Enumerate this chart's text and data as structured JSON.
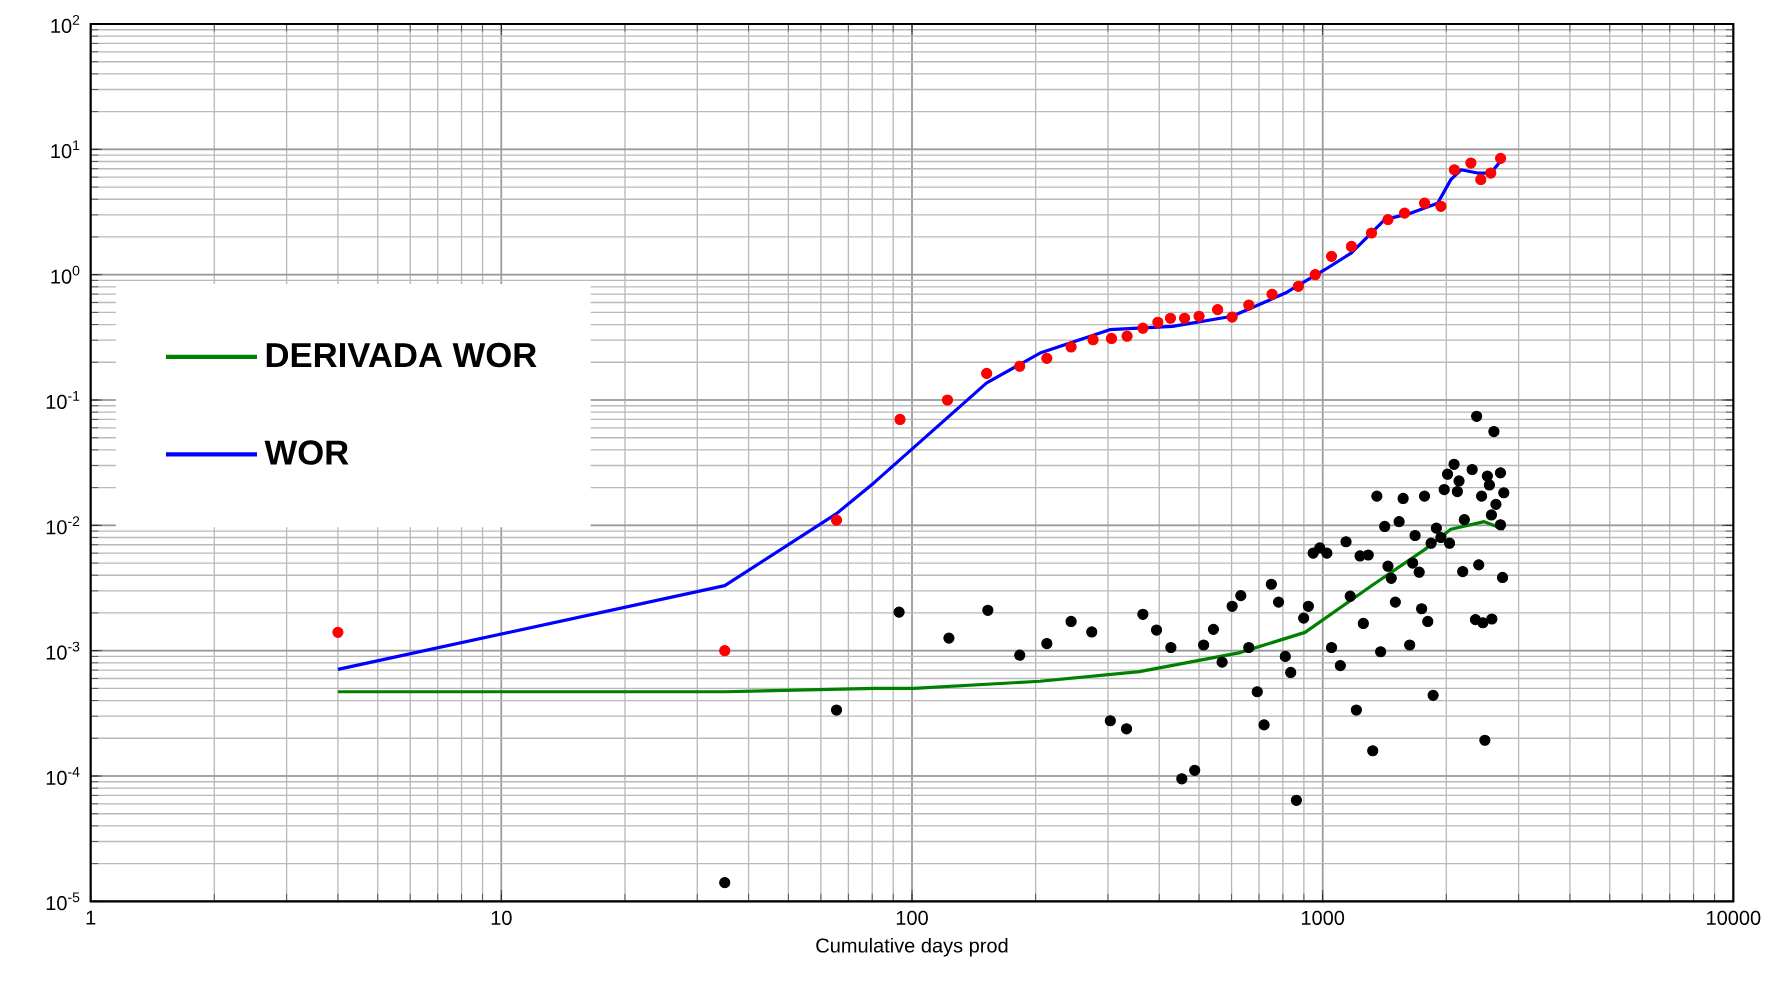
{
  "chart_data": {
    "type": "line",
    "xlabel": "Cumulative days prod",
    "log": "xy",
    "grid": true,
    "legend": "left",
    "xlim": [
      1,
      10000
    ],
    "ylim": [
      1e-05,
      100
    ],
    "xticks": [
      1,
      10,
      100,
      1000,
      10000
    ],
    "yticks": [
      {
        "value": 1e-05,
        "label": "10$^{-5}$"
      },
      {
        "value": 0.0001,
        "label": "10$^{-4}$"
      },
      {
        "value": 0.001,
        "label": "10$^{-3}$"
      },
      {
        "value": 0.01,
        "label": "10$^{-2}$"
      },
      {
        "value": 0.1,
        "label": "10$^{-1}$"
      },
      {
        "value": 1,
        "label": "10$^{0}$"
      },
      {
        "value": 10,
        "label": "10$^{1}$"
      },
      {
        "value": 100,
        "label": "10$^{2}$"
      }
    ],
    "series": [
      {
        "name": "DERIVADA WOR",
        "marker": "none",
        "color": "#008000",
        "x": [
          4,
          35,
          81,
          101,
          205,
          358,
          625,
          906,
          1315,
          1771,
          2052,
          2473,
          2766
        ],
        "values": [
          0.00047,
          0.00047,
          0.0005,
          0.0005,
          0.00057,
          0.00068,
          0.00096,
          0.0014,
          0.0033,
          0.0064,
          0.0093,
          0.0107,
          0.0093
        ]
      },
      {
        "name": "WOR",
        "marker": "none",
        "color": "#0000ff",
        "x": [
          4,
          35,
          65.5,
          81,
          152,
          205,
          303,
          431,
          602,
          811,
          1014,
          1175,
          1416,
          1642,
          1905,
          2052,
          2172,
          2382,
          2566,
          2712
        ],
        "values": [
          0.00071,
          0.0033,
          0.0124,
          0.022,
          0.137,
          0.237,
          0.364,
          0.387,
          0.466,
          0.713,
          1.1,
          1.49,
          2.75,
          3.1,
          3.72,
          5.73,
          6.87,
          6.47,
          6.47,
          8.05
        ]
      },
      {
        "type": "scatter",
        "marker": "circle",
        "color": "#ff0000",
        "x": [
          4,
          35,
          65.5,
          93.5,
          122,
          152,
          183,
          213,
          244,
          276,
          306,
          334,
          365,
          397,
          426,
          461,
          500,
          555,
          602,
          661,
          753,
          873,
          959,
          1051,
          1175,
          1315,
          1442,
          1583,
          1771,
          1941,
          2093,
          2296,
          2427,
          2566,
          2712
        ],
        "values": [
          0.0014,
          0.001,
          0.011,
          0.07,
          0.1,
          0.163,
          0.186,
          0.215,
          0.265,
          0.303,
          0.31,
          0.323,
          0.374,
          0.417,
          0.449,
          0.449,
          0.466,
          0.526,
          0.459,
          0.573,
          0.697,
          0.808,
          1.0,
          1.4,
          1.68,
          2.15,
          2.75,
          3.1,
          3.72,
          3.51,
          6.87,
          7.77,
          5.73,
          6.47,
          8.47
        ]
      },
      {
        "type": "scatter",
        "marker": "circle",
        "color": "#000000",
        "x": [
          35,
          65.5,
          93,
          123,
          153,
          183,
          213,
          244,
          274,
          304,
          333,
          365,
          394,
          427,
          454,
          488,
          513,
          542,
          569,
          602,
          632,
          661,
          693,
          720,
          750,
          781,
          811,
          836,
          863,
          899,
          923,
          948,
          984,
          1024,
          1051,
          1104,
          1140,
          1167,
          1208,
          1256,
          1233,
          1291,
          1324,
          1355,
          1384,
          1416,
          1442,
          1469,
          1503,
          1535,
          1570,
          1629,
          1656,
          1679,
          1718,
          1742,
          1770,
          1803,
          1858,
          1892,
          1837,
          1941,
          1977,
          2014,
          2037,
          2089,
          2128,
          2148,
          2193,
          2213,
          2312,
          2355,
          2371,
          2399,
          2438,
          2455,
          2483,
          2518,
          2547,
          2576,
          2612,
          2642,
          2582,
          2710,
          2742,
          2761,
          2710
        ],
        "values": [
          1.41e-05,
          0.000336,
          0.00203,
          0.00126,
          0.0021,
          0.00092,
          0.00114,
          0.00171,
          0.00141,
          0.000276,
          0.000238,
          0.00195,
          0.00146,
          0.00106,
          9.5e-05,
          0.000111,
          0.00111,
          0.00148,
          0.00081,
          0.00226,
          0.00275,
          0.00106,
          0.00047,
          0.000256,
          0.00339,
          0.00244,
          0.0009,
          0.00067,
          6.4e-05,
          0.00182,
          0.00226,
          0.006,
          0.0066,
          0.006,
          0.00106,
          0.00076,
          0.0074,
          0.00272,
          0.000336,
          0.00165,
          0.0057,
          0.0058,
          0.000159,
          0.0171,
          0.00098,
          0.0098,
          0.00472,
          0.00378,
          0.00244,
          0.0107,
          0.0164,
          0.00111,
          0.005,
          0.0083,
          0.00423,
          0.00216,
          0.0171,
          0.00171,
          0.00044,
          0.0095,
          0.0072,
          0.008,
          0.0193,
          0.0256,
          0.0072,
          0.0307,
          0.0186,
          0.0226,
          0.00428,
          0.0111,
          0.0279,
          0.00177,
          0.0741,
          0.00484,
          0.0171,
          0.00167,
          0.000193,
          0.0247,
          0.021,
          0.0121,
          0.056,
          0.0147,
          0.00179,
          0.0262,
          0.00384,
          0.0182,
          0.0101
        ]
      }
    ]
  }
}
